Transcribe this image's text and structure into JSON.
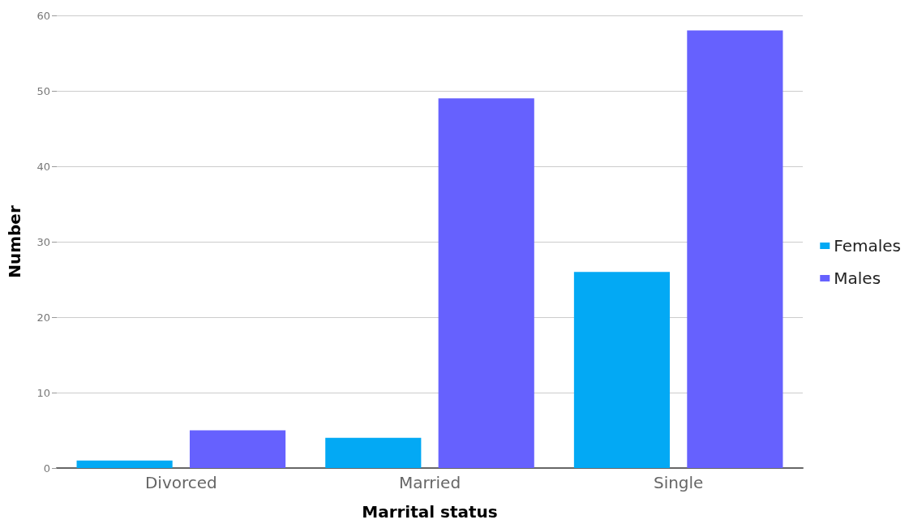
{
  "chart_data": {
    "type": "bar",
    "xlabel": "Marrital status",
    "ylabel": "Number",
    "categories": [
      "Divorced",
      "Married",
      "Single"
    ],
    "series": [
      {
        "name": "Females",
        "color": "#03a9f4",
        "values": [
          1,
          4,
          26
        ]
      },
      {
        "name": "Males",
        "color": "#6661fe",
        "values": [
          5,
          49,
          58
        ]
      }
    ],
    "ylim": [
      0,
      60
    ],
    "yticks": [
      0,
      10,
      20,
      30,
      40,
      50,
      60
    ],
    "grid": "y",
    "legend": "right"
  }
}
